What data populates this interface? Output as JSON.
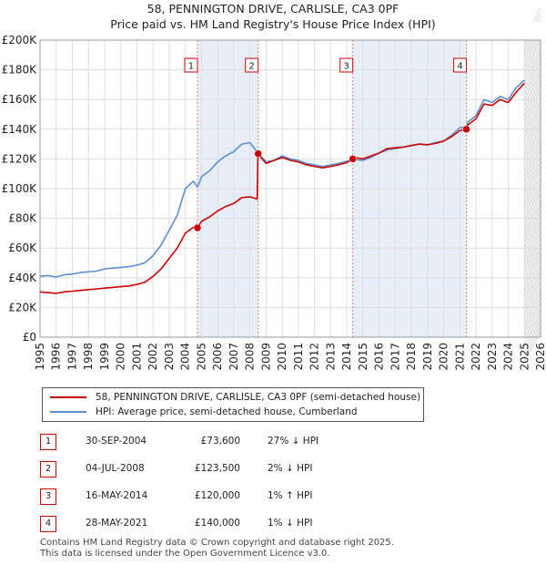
{
  "title": "58, PENNINGTON DRIVE, CARLISLE, CA3 0PF",
  "subtitle": "Price paid vs. HM Land Registry's House Price Index (HPI)",
  "colors": {
    "property": "#cc0000",
    "hpi": "#5b8fd0",
    "grid": "#dddddd",
    "band": "#e8eef8",
    "future": "#cfcfcf"
  },
  "chart_data": {
    "type": "line",
    "title": "58, PENNINGTON DRIVE, CARLISLE, CA3 0PF",
    "subtitle": "Price paid vs. HM Land Registry's House Price Index (HPI)",
    "xlabel": "",
    "ylabel": "",
    "xlim": [
      1995,
      2026
    ],
    "ylim": [
      0,
      200000
    ],
    "yticks": [
      0,
      20000,
      40000,
      60000,
      80000,
      100000,
      120000,
      140000,
      160000,
      180000,
      200000
    ],
    "ytick_labels": [
      "£0",
      "£20K",
      "£40K",
      "£60K",
      "£80K",
      "£100K",
      "£120K",
      "£140K",
      "£160K",
      "£180K",
      "£200K"
    ],
    "xticks": [
      1995,
      1996,
      1997,
      1998,
      1999,
      2000,
      2001,
      2002,
      2003,
      2004,
      2005,
      2006,
      2007,
      2008,
      2009,
      2010,
      2011,
      2012,
      2013,
      2014,
      2015,
      2016,
      2017,
      2018,
      2019,
      2020,
      2021,
      2022,
      2023,
      2024,
      2025,
      2026
    ],
    "series": [
      {
        "name": "HPI: Average price, semi-detached house, Cumberland",
        "color": "#5b8fd0",
        "x": [
          1995.0,
          1995.5,
          1996.0,
          1996.5,
          1997.0,
          1997.5,
          1998.0,
          1998.5,
          1999.0,
          1999.5,
          2000.0,
          2000.5,
          2001.0,
          2001.5,
          2002.0,
          2002.5,
          2003.0,
          2003.5,
          2004.0,
          2004.5,
          2004.75,
          2005.0,
          2005.5,
          2006.0,
          2006.5,
          2007.0,
          2007.5,
          2008.0,
          2008.5,
          2009.0,
          2009.5,
          2010.0,
          2010.5,
          2011.0,
          2011.5,
          2012.0,
          2012.5,
          2013.0,
          2013.5,
          2014.0,
          2014.37,
          2014.5,
          2015.0,
          2015.5,
          2016.0,
          2016.5,
          2017.0,
          2017.5,
          2018.0,
          2018.5,
          2019.0,
          2019.5,
          2020.0,
          2020.5,
          2021.0,
          2021.41,
          2021.5,
          2022.0,
          2022.5,
          2023.0,
          2023.5,
          2024.0,
          2024.5,
          2025.0
        ],
        "values": [
          41000,
          41500,
          40500,
          42000,
          42500,
          43500,
          44000,
          44500,
          46000,
          46500,
          47000,
          47500,
          48500,
          50000,
          55000,
          62000,
          72000,
          82000,
          100000,
          105000,
          101000,
          108000,
          112000,
          118000,
          122000,
          125000,
          130000,
          131000,
          124000,
          118000,
          119000,
          122000,
          120000,
          119000,
          117000,
          116000,
          115000,
          116000,
          117000,
          118500,
          119000,
          119500,
          119000,
          121000,
          124000,
          126000,
          127000,
          128000,
          129000,
          130000,
          129500,
          131000,
          132000,
          136000,
          141000,
          141500,
          145000,
          149000,
          160000,
          158000,
          162000,
          160000,
          168000,
          173000
        ]
      },
      {
        "name": "58, PENNINGTON DRIVE, CARLISLE, CA3 0PF (semi-detached house)",
        "color": "#cc0000",
        "x": [
          1995.0,
          1995.5,
          1996.0,
          1996.5,
          1997.0,
          1997.5,
          1998.0,
          1998.5,
          1999.0,
          1999.5,
          2000.0,
          2000.5,
          2001.0,
          2001.5,
          2002.0,
          2002.5,
          2003.0,
          2003.5,
          2004.0,
          2004.5,
          2004.75,
          2005.0,
          2005.5,
          2006.0,
          2006.5,
          2007.0,
          2007.5,
          2008.0,
          2008.45,
          2008.5,
          2009.0,
          2009.5,
          2010.0,
          2010.5,
          2011.0,
          2011.5,
          2012.0,
          2012.5,
          2013.0,
          2013.5,
          2014.0,
          2014.37,
          2014.5,
          2015.0,
          2015.5,
          2016.0,
          2016.5,
          2017.0,
          2017.5,
          2018.0,
          2018.5,
          2019.0,
          2019.5,
          2020.0,
          2020.5,
          2021.0,
          2021.41,
          2021.5,
          2022.0,
          2022.5,
          2023.0,
          2023.5,
          2024.0,
          2024.5,
          2025.0
        ],
        "values": [
          30500,
          30000,
          29500,
          30500,
          31000,
          31500,
          32000,
          32500,
          33000,
          33500,
          34000,
          34500,
          35500,
          37000,
          41000,
          46000,
          53000,
          60000,
          70000,
          74000,
          73600,
          78000,
          81000,
          85000,
          88000,
          90000,
          94000,
          94500,
          93000,
          123500,
          117000,
          119000,
          121000,
          119000,
          118000,
          116000,
          115000,
          114000,
          115000,
          116000,
          117500,
          120000,
          121000,
          120000,
          122000,
          124000,
          127000,
          127500,
          128000,
          129000,
          130000,
          129500,
          130500,
          132000,
          135000,
          139000,
          140000,
          143000,
          147000,
          157000,
          156000,
          160000,
          158000,
          165000,
          171000
        ]
      }
    ],
    "annotations": [
      {
        "label": "1",
        "x": 2004.75,
        "value": 73600
      },
      {
        "label": "2",
        "x": 2008.51,
        "value": 123500
      },
      {
        "label": "3",
        "x": 2014.37,
        "value": 120000
      },
      {
        "label": "4",
        "x": 2021.41,
        "value": 140000
      }
    ]
  },
  "legend": {
    "property_label": "58, PENNINGTON DRIVE, CARLISLE, CA3 0PF (semi-detached house)",
    "hpi_label": "HPI: Average price, semi-detached house, Cumberland"
  },
  "transactions": [
    {
      "num": "1",
      "date": "30-SEP-2004",
      "price": "£73,600",
      "rel": "27% ↓ HPI"
    },
    {
      "num": "2",
      "date": "04-JUL-2008",
      "price": "£123,500",
      "rel": "2% ↓ HPI"
    },
    {
      "num": "3",
      "date": "16-MAY-2014",
      "price": "£120,000",
      "rel": "1% ↑ HPI"
    },
    {
      "num": "4",
      "date": "28-MAY-2021",
      "price": "£140,000",
      "rel": "1% ↓ HPI"
    }
  ],
  "footer": {
    "line1": "Contains HM Land Registry data © Crown copyright and database right 2025.",
    "line2": "This data is licensed under the Open Government Licence v3.0."
  }
}
